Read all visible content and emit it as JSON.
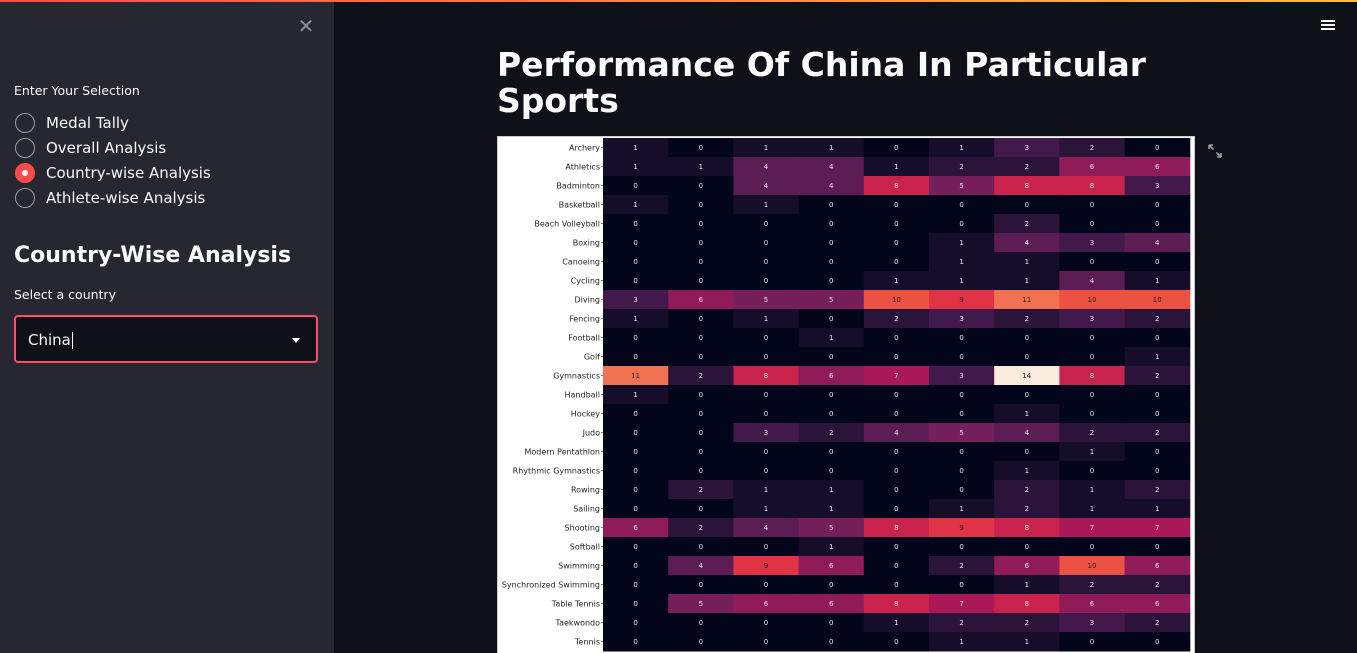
{
  "sidebar": {
    "close_icon": "close-icon",
    "selection_label": "Enter Your Selection",
    "options": [
      "Medal Tally",
      "Overall Analysis",
      "Country-wise Analysis",
      "Athlete-wise Analysis"
    ],
    "selected_index": 2,
    "section_title": "Country-Wise Analysis",
    "country_label": "Select a country",
    "country_value": "China"
  },
  "main": {
    "title": "Performance Of China In Particular Sports",
    "menu_icon": "hamburger-menu-icon",
    "expand_icon": "fullscreen-expand-icon"
  },
  "colors": {
    "accent": "#ff4b4b",
    "sidebar_bg": "#262730",
    "main_bg": "#0e1117"
  },
  "chart_data": {
    "type": "heatmap",
    "colormap": "rocket",
    "vmin": 0,
    "vmax": 14,
    "y_categories": [
      "Archery",
      "Athletics",
      "Badminton",
      "Basketball",
      "Beach Volleyball",
      "Boxing",
      "Canoeing",
      "Cycling",
      "Diving",
      "Fencing",
      "Football",
      "Golf",
      "Gymnastics",
      "Handball",
      "Hockey",
      "Judo",
      "Modern Pentathlon",
      "Rhythmic Gymnastics",
      "Rowing",
      "Sailing",
      "Shooting",
      "Softball",
      "Swimming",
      "Synchronized Swimming",
      "Table Tennis",
      "Taekwondo",
      "Tennis"
    ],
    "values": [
      [
        1,
        0,
        1,
        1,
        0,
        1,
        3,
        2,
        0
      ],
      [
        1,
        1,
        4,
        4,
        1,
        2,
        2,
        6,
        6
      ],
      [
        0,
        0,
        4,
        4,
        8,
        5,
        8,
        8,
        3
      ],
      [
        1,
        0,
        1,
        0,
        0,
        0,
        0,
        0,
        0
      ],
      [
        0,
        0,
        0,
        0,
        0,
        0,
        2,
        0,
        0
      ],
      [
        0,
        0,
        0,
        0,
        0,
        1,
        4,
        3,
        4
      ],
      [
        0,
        0,
        0,
        0,
        0,
        1,
        1,
        0,
        0
      ],
      [
        0,
        0,
        0,
        0,
        1,
        1,
        1,
        4,
        1
      ],
      [
        3,
        6,
        5,
        5,
        10,
        9,
        11,
        10,
        10
      ],
      [
        1,
        0,
        1,
        0,
        2,
        3,
        2,
        3,
        2
      ],
      [
        0,
        0,
        0,
        1,
        0,
        0,
        0,
        0,
        0
      ],
      [
        0,
        0,
        0,
        0,
        0,
        0,
        0,
        0,
        1
      ],
      [
        11,
        2,
        8,
        6,
        7,
        3,
        14,
        8,
        2
      ],
      [
        1,
        0,
        0,
        0,
        0,
        0,
        0,
        0,
        0
      ],
      [
        0,
        0,
        0,
        0,
        0,
        0,
        1,
        0,
        0
      ],
      [
        0,
        0,
        3,
        2,
        4,
        5,
        4,
        2,
        2
      ],
      [
        0,
        0,
        0,
        0,
        0,
        0,
        0,
        1,
        0
      ],
      [
        0,
        0,
        0,
        0,
        0,
        0,
        1,
        0,
        0
      ],
      [
        0,
        2,
        1,
        1,
        0,
        0,
        2,
        1,
        2
      ],
      [
        0,
        0,
        1,
        1,
        0,
        1,
        2,
        1,
        1
      ],
      [
        6,
        2,
        4,
        5,
        8,
        9,
        8,
        7,
        7
      ],
      [
        0,
        0,
        0,
        1,
        0,
        0,
        0,
        0,
        0
      ],
      [
        0,
        4,
        9,
        6,
        0,
        2,
        6,
        10,
        6
      ],
      [
        0,
        0,
        0,
        0,
        0,
        0,
        1,
        2,
        2
      ],
      [
        0,
        5,
        6,
        6,
        8,
        7,
        8,
        6,
        6
      ],
      [
        0,
        0,
        0,
        0,
        1,
        2,
        2,
        3,
        2
      ],
      [
        0,
        0,
        0,
        0,
        0,
        1,
        1,
        0,
        0
      ]
    ]
  }
}
